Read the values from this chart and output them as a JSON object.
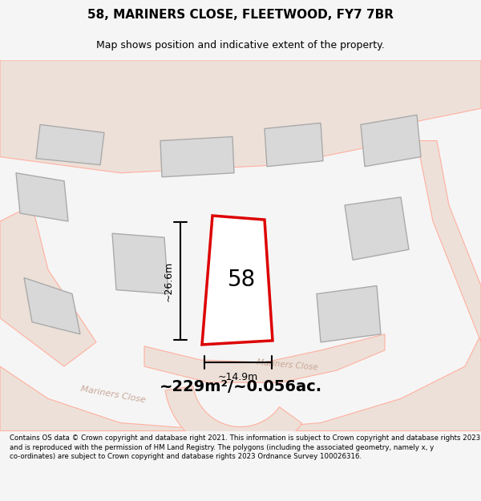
{
  "title": "58, MARINERS CLOSE, FLEETWOOD, FY7 7BR",
  "subtitle": "Map shows position and indicative extent of the property.",
  "area_text": "~229m²/~0.056ac.",
  "number_label": "58",
  "dim_height": "~26.6m",
  "dim_width": "~14.9m",
  "footer": "Contains OS data © Crown copyright and database right 2021. This information is subject to Crown copyright and database rights 2023 and is reproduced with the permission of HM Land Registry. The polygons (including the associated geometry, namely x, y co-ordinates) are subject to Crown copyright and database rights 2023 Ordnance Survey 100026316.",
  "bg_color": "#f5f5f5",
  "map_bg": "#f0efed",
  "road_color": "#e8d8c8",
  "plot_line_color": "#dd0000",
  "building_fill": "#d8d8d8",
  "building_edge": "#aaaaaa",
  "road_outline": "#ffb0a0",
  "street_label1": "Mariners Close",
  "street_label2": "Mariners Close"
}
